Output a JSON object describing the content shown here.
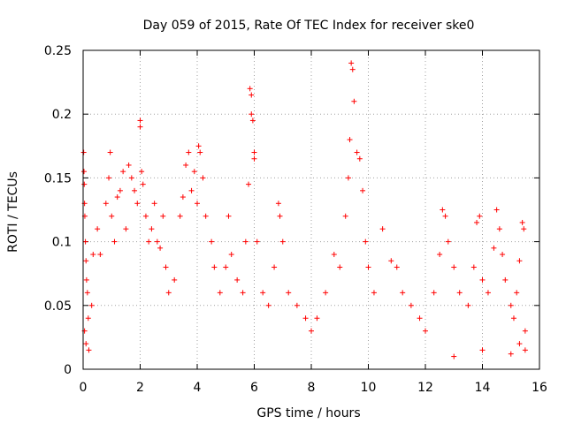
{
  "chart_data": {
    "type": "scatter",
    "title": "Day 059 of 2015, Rate Of TEC Index for receiver ske0",
    "xlabel": "GPS time / hours",
    "ylabel": "ROTI / TECUs",
    "xlim": [
      0,
      16
    ],
    "ylim": [
      0,
      0.25
    ],
    "xticks": [
      0,
      2,
      4,
      6,
      8,
      10,
      12,
      14,
      16
    ],
    "yticks": [
      0,
      0.05,
      0.1,
      0.15,
      0.2,
      0.25
    ],
    "xtick_labels": [
      "0",
      "2",
      "4",
      "6",
      "8",
      "10",
      "12",
      "14",
      "16"
    ],
    "ytick_labels": [
      "0",
      "0.05",
      "0.1",
      "0.15",
      "0.2",
      "0.25"
    ],
    "grid": true,
    "marker": "+",
    "color": "#ff0000",
    "series": [
      {
        "name": "ROTI",
        "points": [
          [
            0.02,
            0.17
          ],
          [
            0.03,
            0.155
          ],
          [
            0.04,
            0.145
          ],
          [
            0.05,
            0.13
          ],
          [
            0.06,
            0.12
          ],
          [
            0.08,
            0.1
          ],
          [
            0.1,
            0.085
          ],
          [
            0.12,
            0.07
          ],
          [
            0.15,
            0.06
          ],
          [
            0.18,
            0.04
          ],
          [
            0.05,
            0.03
          ],
          [
            0.1,
            0.02
          ],
          [
            0.2,
            0.015
          ],
          [
            0.3,
            0.05
          ],
          [
            0.35,
            0.09
          ],
          [
            0.5,
            0.11
          ],
          [
            0.6,
            0.09
          ],
          [
            0.8,
            0.13
          ],
          [
            0.9,
            0.15
          ],
          [
            0.95,
            0.17
          ],
          [
            1.0,
            0.12
          ],
          [
            1.1,
            0.1
          ],
          [
            1.2,
            0.135
          ],
          [
            1.3,
            0.14
          ],
          [
            1.4,
            0.155
          ],
          [
            1.5,
            0.11
          ],
          [
            1.6,
            0.16
          ],
          [
            1.7,
            0.15
          ],
          [
            1.8,
            0.14
          ],
          [
            1.9,
            0.13
          ],
          [
            2.0,
            0.195
          ],
          [
            2.0,
            0.19
          ],
          [
            2.05,
            0.155
          ],
          [
            2.1,
            0.145
          ],
          [
            2.2,
            0.12
          ],
          [
            2.3,
            0.1
          ],
          [
            2.4,
            0.11
          ],
          [
            2.5,
            0.13
          ],
          [
            2.6,
            0.1
          ],
          [
            2.7,
            0.095
          ],
          [
            2.8,
            0.12
          ],
          [
            2.9,
            0.08
          ],
          [
            3.0,
            0.06
          ],
          [
            3.2,
            0.07
          ],
          [
            3.4,
            0.12
          ],
          [
            3.5,
            0.135
          ],
          [
            3.6,
            0.16
          ],
          [
            3.7,
            0.17
          ],
          [
            3.8,
            0.14
          ],
          [
            3.9,
            0.155
          ],
          [
            4.0,
            0.13
          ],
          [
            4.05,
            0.175
          ],
          [
            4.1,
            0.17
          ],
          [
            4.2,
            0.15
          ],
          [
            4.3,
            0.12
          ],
          [
            4.5,
            0.1
          ],
          [
            4.6,
            0.08
          ],
          [
            4.8,
            0.06
          ],
          [
            5.0,
            0.08
          ],
          [
            5.1,
            0.12
          ],
          [
            5.2,
            0.09
          ],
          [
            5.4,
            0.07
          ],
          [
            5.6,
            0.06
          ],
          [
            5.7,
            0.1
          ],
          [
            5.8,
            0.145
          ],
          [
            5.85,
            0.22
          ],
          [
            5.9,
            0.215
          ],
          [
            5.9,
            0.2
          ],
          [
            5.95,
            0.195
          ],
          [
            6.0,
            0.17
          ],
          [
            6.0,
            0.165
          ],
          [
            6.1,
            0.1
          ],
          [
            6.3,
            0.06
          ],
          [
            6.5,
            0.05
          ],
          [
            6.7,
            0.08
          ],
          [
            6.85,
            0.13
          ],
          [
            6.9,
            0.12
          ],
          [
            7.0,
            0.1
          ],
          [
            7.2,
            0.06
          ],
          [
            7.5,
            0.05
          ],
          [
            7.8,
            0.04
          ],
          [
            8.0,
            0.03
          ],
          [
            8.2,
            0.04
          ],
          [
            8.5,
            0.06
          ],
          [
            8.8,
            0.09
          ],
          [
            9.0,
            0.08
          ],
          [
            9.2,
            0.12
          ],
          [
            9.3,
            0.15
          ],
          [
            9.35,
            0.18
          ],
          [
            9.4,
            0.24
          ],
          [
            9.45,
            0.235
          ],
          [
            9.5,
            0.21
          ],
          [
            9.6,
            0.17
          ],
          [
            9.7,
            0.165
          ],
          [
            9.8,
            0.14
          ],
          [
            9.9,
            0.1
          ],
          [
            10.0,
            0.08
          ],
          [
            10.2,
            0.06
          ],
          [
            10.5,
            0.11
          ],
          [
            10.8,
            0.085
          ],
          [
            11.0,
            0.08
          ],
          [
            11.2,
            0.06
          ],
          [
            11.5,
            0.05
          ],
          [
            11.8,
            0.04
          ],
          [
            12.0,
            0.03
          ],
          [
            12.3,
            0.06
          ],
          [
            12.5,
            0.09
          ],
          [
            12.6,
            0.125
          ],
          [
            12.7,
            0.12
          ],
          [
            12.8,
            0.1
          ],
          [
            13.0,
            0.08
          ],
          [
            13.2,
            0.06
          ],
          [
            13.5,
            0.05
          ],
          [
            13.7,
            0.08
          ],
          [
            13.8,
            0.115
          ],
          [
            13.9,
            0.12
          ],
          [
            14.0,
            0.07
          ],
          [
            14.2,
            0.06
          ],
          [
            14.4,
            0.095
          ],
          [
            14.5,
            0.125
          ],
          [
            14.6,
            0.11
          ],
          [
            14.7,
            0.09
          ],
          [
            14.8,
            0.07
          ],
          [
            15.0,
            0.05
          ],
          [
            15.1,
            0.04
          ],
          [
            15.2,
            0.06
          ],
          [
            15.3,
            0.085
          ],
          [
            15.4,
            0.115
          ],
          [
            15.45,
            0.11
          ],
          [
            15.5,
            0.03
          ],
          [
            15.5,
            0.015
          ],
          [
            15.3,
            0.02
          ],
          [
            15.0,
            0.012
          ],
          [
            14.0,
            0.015
          ],
          [
            13.0,
            0.01
          ]
        ]
      }
    ]
  }
}
